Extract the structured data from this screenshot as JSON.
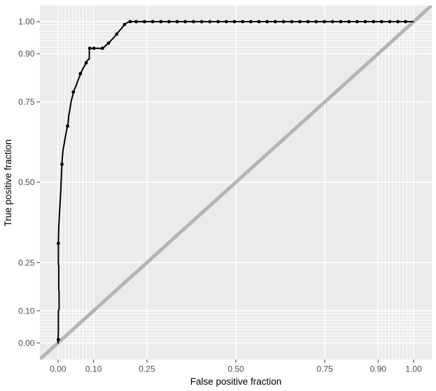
{
  "chart_data": {
    "type": "line",
    "title": "",
    "xlabel": "False positive fraction",
    "ylabel": "True positive fraction",
    "xlim": [
      -0.051,
      1.051
    ],
    "ylim": [
      -0.052,
      1.05
    ],
    "grid": "on",
    "legend": "none",
    "x_breaks": {
      "values": [
        0.0,
        0.1,
        0.25,
        0.5,
        0.75,
        0.9,
        1.0
      ],
      "labels": [
        "0.00",
        "0.10",
        "0.25",
        "0.50",
        "0.75",
        "0.90",
        "1.00"
      ]
    },
    "y_breaks": {
      "values": [
        0.0,
        0.1,
        0.25,
        0.5,
        0.75,
        0.9,
        1.0
      ],
      "labels": [
        "0.00",
        "0.10",
        "0.25",
        "0.50",
        "0.75",
        "0.90",
        "1.00"
      ]
    },
    "x_minor_breaks": [
      0.01,
      0.02,
      0.03,
      0.04,
      0.05,
      0.06,
      0.07,
      0.08,
      0.09,
      0.91,
      0.92,
      0.93,
      0.94,
      0.95,
      0.96,
      0.97,
      0.98,
      0.99
    ],
    "y_minor_breaks": [
      0.01,
      0.02,
      0.03,
      0.04,
      0.05,
      0.06,
      0.07,
      0.08,
      0.09,
      0.91,
      0.92,
      0.93,
      0.94,
      0.95,
      0.96,
      0.97,
      0.98,
      0.99
    ],
    "reference_line": {
      "name": "chance-diagonal",
      "equation": "y = x",
      "color": "#b4b4b4",
      "width": 5
    },
    "series": [
      {
        "name": "ROC curve",
        "color": "#000000",
        "line_width": 2,
        "points": [
          [
            0.0,
            0.0
          ],
          [
            0.001,
            0.04
          ],
          [
            0.001,
            0.1
          ],
          [
            0.003,
            0.105
          ],
          [
            0.003,
            0.16
          ],
          [
            0.002,
            0.165
          ],
          [
            0.002,
            0.24
          ],
          [
            0.001,
            0.245
          ],
          [
            0.001,
            0.31
          ],
          [
            0.002,
            0.36
          ],
          [
            0.004,
            0.4
          ],
          [
            0.006,
            0.44
          ],
          [
            0.008,
            0.48
          ],
          [
            0.009,
            0.51
          ],
          [
            0.011,
            0.556
          ],
          [
            0.012,
            0.575
          ],
          [
            0.014,
            0.6
          ],
          [
            0.017,
            0.618
          ],
          [
            0.019,
            0.632
          ],
          [
            0.022,
            0.65
          ],
          [
            0.024,
            0.662
          ],
          [
            0.027,
            0.675
          ],
          [
            0.029,
            0.692
          ],
          [
            0.03,
            0.708
          ],
          [
            0.032,
            0.718
          ],
          [
            0.034,
            0.732
          ],
          [
            0.036,
            0.746
          ],
          [
            0.038,
            0.757
          ],
          [
            0.041,
            0.769
          ],
          [
            0.043,
            0.781
          ],
          [
            0.047,
            0.791
          ],
          [
            0.051,
            0.801
          ],
          [
            0.054,
            0.812
          ],
          [
            0.058,
            0.822
          ],
          [
            0.061,
            0.831
          ],
          [
            0.063,
            0.838
          ],
          [
            0.067,
            0.847
          ],
          [
            0.071,
            0.856
          ],
          [
            0.075,
            0.863
          ],
          [
            0.079,
            0.872
          ],
          [
            0.082,
            0.878
          ],
          [
            0.086,
            0.883
          ],
          [
            0.088,
            0.883
          ],
          [
            0.088,
            0.917
          ],
          [
            0.101,
            0.917
          ],
          [
            0.125,
            0.917
          ],
          [
            0.13,
            0.921
          ],
          [
            0.135,
            0.927
          ],
          [
            0.142,
            0.933
          ],
          [
            0.147,
            0.939
          ],
          [
            0.152,
            0.945
          ],
          [
            0.157,
            0.951
          ],
          [
            0.161,
            0.956
          ],
          [
            0.165,
            0.961
          ],
          [
            0.169,
            0.967
          ],
          [
            0.173,
            0.972
          ],
          [
            0.178,
            0.978
          ],
          [
            0.182,
            0.984
          ],
          [
            0.187,
            0.991
          ],
          [
            0.192,
            0.995
          ],
          [
            0.197,
            0.998
          ],
          [
            0.203,
            1.0
          ],
          [
            0.998,
            1.0
          ]
        ]
      }
    ],
    "cut_points": [
      [
        0.001,
        0.01
      ],
      [
        0.001,
        0.31
      ],
      [
        0.011,
        0.556
      ],
      [
        0.027,
        0.675
      ],
      [
        0.043,
        0.781
      ],
      [
        0.063,
        0.838
      ],
      [
        0.079,
        0.872
      ],
      [
        0.089,
        0.917
      ],
      [
        0.101,
        0.917
      ],
      [
        0.125,
        0.917
      ],
      [
        0.142,
        0.933
      ],
      [
        0.165,
        0.961
      ],
      [
        0.187,
        0.991
      ],
      [
        0.203,
        1.0
      ],
      [
        0.22,
        1.0
      ],
      [
        0.243,
        1.0
      ],
      [
        0.266,
        1.0
      ],
      [
        0.289,
        1.0
      ],
      [
        0.312,
        1.0
      ],
      [
        0.335,
        1.0
      ],
      [
        0.358,
        1.0
      ],
      [
        0.381,
        1.0
      ],
      [
        0.404,
        1.0
      ],
      [
        0.427,
        1.0
      ],
      [
        0.45,
        1.0
      ],
      [
        0.473,
        1.0
      ],
      [
        0.496,
        1.0
      ],
      [
        0.519,
        1.0
      ],
      [
        0.542,
        1.0
      ],
      [
        0.565,
        1.0
      ],
      [
        0.588,
        1.0
      ],
      [
        0.611,
        1.0
      ],
      [
        0.634,
        1.0
      ],
      [
        0.657,
        1.0
      ],
      [
        0.68,
        1.0
      ],
      [
        0.703,
        1.0
      ],
      [
        0.726,
        1.0
      ],
      [
        0.749,
        1.0
      ],
      [
        0.772,
        1.0
      ],
      [
        0.795,
        1.0
      ],
      [
        0.818,
        1.0
      ],
      [
        0.841,
        1.0
      ],
      [
        0.864,
        1.0
      ],
      [
        0.887,
        1.0
      ],
      [
        0.91,
        1.0
      ],
      [
        0.933,
        1.0
      ],
      [
        0.956,
        1.0
      ],
      [
        0.977,
        1.0
      ]
    ],
    "marker": {
      "shape": "filled-circle",
      "radius": 2.4,
      "color": "#000000"
    },
    "colors": {
      "panel_background": "#ebebeb",
      "gridline_major": "#ffffff",
      "gridline_minor": "#ffffff",
      "axis_text": "#4d4d4d",
      "axis_title": "#000000",
      "tick_mark": "#333333",
      "plot_background": "#ffffff"
    }
  }
}
